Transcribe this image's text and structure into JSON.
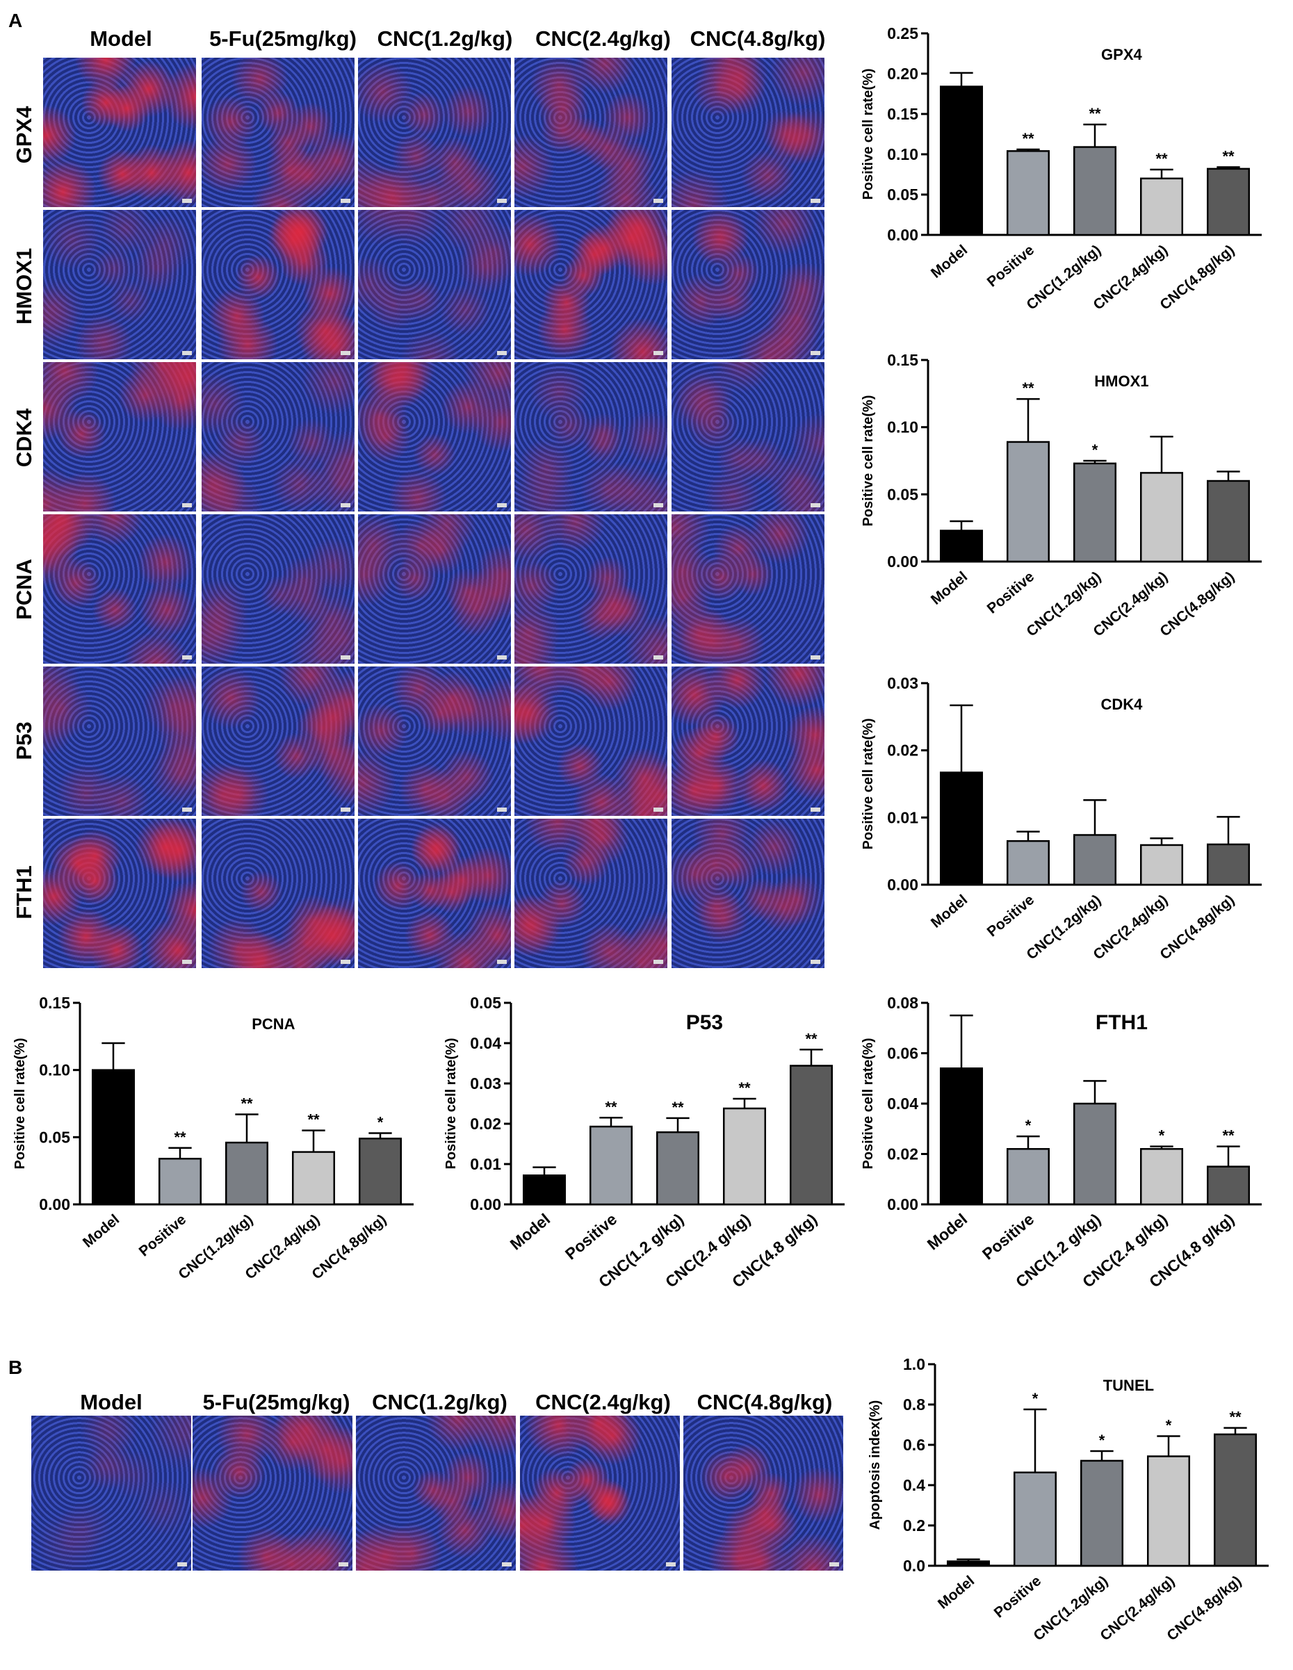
{
  "panels": {
    "a": {
      "letter": "A",
      "columns": [
        "Model",
        "5-Fu(25mg/kg)",
        "CNC(1.2g/kg)",
        "CNC(2.4g/kg)",
        "CNC(4.8g/kg)"
      ],
      "rows": [
        "GPX4",
        "HMOX1",
        "CDK4",
        "PCNA",
        "P53",
        "FTH1"
      ]
    },
    "b": {
      "letter": "B",
      "columns": [
        "Model",
        "5-Fu(25mg/kg)",
        "CNC(1.2g/kg)",
        "CNC(2.4g/kg)",
        "CNC(4.8g/kg)"
      ]
    }
  },
  "colors": {
    "stain_blue": "#2a3fa8",
    "stain_red": "#d8202a",
    "bar_colors": [
      "#000000",
      "#9aa0a8",
      "#7a7e84",
      "#c8c8c8",
      "#5a5a5a"
    ]
  },
  "chart_data": [
    {
      "id": "gpx4",
      "type": "bar",
      "title": "GPX4",
      "ylabel": "Positive cell rate(%)",
      "ylim": [
        0,
        0.25
      ],
      "yticks": [
        "0.00",
        "0.05",
        "0.10",
        "0.15",
        "0.20",
        "0.25"
      ],
      "categories": [
        "Model",
        "Positive",
        "CNC(1.2g/kg)",
        "CNC(2.4g/kg)",
        "CNC(4.8g/kg)"
      ],
      "values": [
        0.184,
        0.104,
        0.109,
        0.07,
        0.082
      ],
      "errors": [
        0.017,
        0.002,
        0.028,
        0.011,
        0.002
      ],
      "significance": [
        "",
        "**",
        "**",
        "**",
        "**"
      ]
    },
    {
      "id": "hmox1",
      "type": "bar",
      "title": "HMOX1",
      "ylabel": "Positive cell rate(%)",
      "ylim": [
        0,
        0.15
      ],
      "yticks": [
        "0.00",
        "0.05",
        "0.10",
        "0.15"
      ],
      "categories": [
        "Model",
        "Positive",
        "CNC(1.2g/kg)",
        "CNC(2.4g/kg)",
        "CNC(4.8g/kg)"
      ],
      "values": [
        0.023,
        0.089,
        0.073,
        0.066,
        0.06
      ],
      "errors": [
        0.007,
        0.032,
        0.002,
        0.027,
        0.007
      ],
      "significance": [
        "",
        "**",
        "*",
        "",
        ""
      ]
    },
    {
      "id": "cdk4",
      "type": "bar",
      "title": "CDK4",
      "ylabel": "Positive cell rate(%)",
      "ylim": [
        0,
        0.03
      ],
      "yticks": [
        "0.00",
        "0.01",
        "0.02",
        "0.03"
      ],
      "categories": [
        "Model",
        "Positive",
        "CNC(1.2g/kg)",
        "CNC(2.4g/kg)",
        "CNC(4.8g/kg)"
      ],
      "values": [
        0.0167,
        0.0065,
        0.0074,
        0.0059,
        0.006
      ],
      "errors": [
        0.01,
        0.0014,
        0.0052,
        0.001,
        0.0041
      ],
      "significance": [
        "",
        "",
        "",
        "",
        ""
      ]
    },
    {
      "id": "pcna",
      "type": "bar",
      "title": "PCNA",
      "ylabel": "Positive cell rate(%)",
      "ylim": [
        0,
        0.15
      ],
      "yticks": [
        "0.00",
        "0.05",
        "0.10",
        "0.15"
      ],
      "categories": [
        "Model",
        "Positive",
        "CNC(1.2g/kg)",
        "CNC(2.4g/kg)",
        "CNC(4.8g/kg)"
      ],
      "values": [
        0.1,
        0.034,
        0.046,
        0.039,
        0.049
      ],
      "errors": [
        0.02,
        0.008,
        0.021,
        0.016,
        0.004
      ],
      "significance": [
        "",
        "**",
        "**",
        "**",
        "*"
      ]
    },
    {
      "id": "p53",
      "type": "bar",
      "title": "P53",
      "ylabel": "Positive cell rate(%)",
      "ylim": [
        0,
        0.05
      ],
      "yticks": [
        "0.00",
        "0.01",
        "0.02",
        "0.03",
        "0.04",
        "0.05"
      ],
      "categories": [
        "Model",
        "Positive",
        "CNC(1.2 g/kg)",
        "CNC(2.4 g/kg)",
        "CNC(4.8 g/kg)"
      ],
      "values": [
        0.0072,
        0.0193,
        0.0179,
        0.0238,
        0.0344
      ],
      "errors": [
        0.002,
        0.0022,
        0.0035,
        0.0024,
        0.004
      ],
      "significance": [
        "",
        "**",
        "**",
        "**",
        "**"
      ]
    },
    {
      "id": "fth1",
      "type": "bar",
      "title": "FTH1",
      "ylabel": "Positive cell rate(%)",
      "ylim": [
        0,
        0.08
      ],
      "yticks": [
        "0.00",
        "0.02",
        "0.04",
        "0.06",
        "0.08"
      ],
      "categories": [
        "Model",
        "Positive",
        "CNC(1.2 g/kg)",
        "CNC(2.4 g/kg)",
        "CNC(4.8 g/kg)"
      ],
      "values": [
        0.054,
        0.022,
        0.04,
        0.022,
        0.015
      ],
      "errors": [
        0.021,
        0.005,
        0.009,
        0.001,
        0.008
      ],
      "significance": [
        "",
        "*",
        "",
        "*",
        "**"
      ]
    },
    {
      "id": "tunel",
      "type": "bar",
      "title": "TUNEL",
      "ylabel": "Apoptosis index(%)",
      "ylim": [
        0,
        1.0
      ],
      "yticks": [
        "0.0",
        "0.2",
        "0.4",
        "0.6",
        "0.8",
        "1.0"
      ],
      "categories": [
        "Model",
        "Positive",
        "CNC(1.2g/kg)",
        "CNC(2.4g/kg)",
        "CNC(4.8g/kg)"
      ],
      "values": [
        0.022,
        0.463,
        0.521,
        0.543,
        0.652
      ],
      "errors": [
        0.01,
        0.313,
        0.048,
        0.1,
        0.032
      ],
      "significance": [
        "",
        "*",
        "*",
        "*",
        "**"
      ]
    }
  ]
}
